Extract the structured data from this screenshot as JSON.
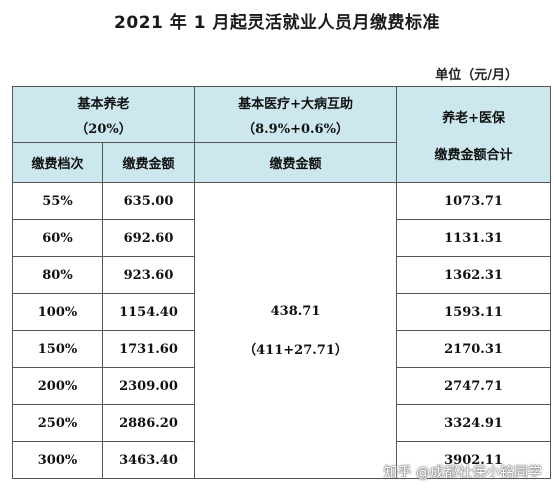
{
  "title": "2021 年 1 月起灵活就业人员月缴费标准",
  "unit": "单位（元/月）",
  "table": {
    "pension_header": "基本养老",
    "pension_rate": "（20%）",
    "medical_header": "基本医疗+大病互助",
    "medical_rate": "（8.9%+0.6%）",
    "total_header_1": "养老+医保",
    "total_header_2": "缴费金额合计",
    "col_level": "缴费档次",
    "col_amount": "缴费金额",
    "col_medical_amount": "缴费金额",
    "medical_value": "438.71",
    "medical_value_detail": "（411+27.71）",
    "rows": [
      {
        "level": "55%",
        "amount": "635.00",
        "total": "1073.71"
      },
      {
        "level": "60%",
        "amount": "692.60",
        "total": "1131.31"
      },
      {
        "level": "80%",
        "amount": "923.60",
        "total": "1362.31"
      },
      {
        "level": "100%",
        "amount": "1154.40",
        "total": "1593.11"
      },
      {
        "level": "150%",
        "amount": "1731.60",
        "total": "2170.31"
      },
      {
        "level": "200%",
        "amount": "2309.00",
        "total": "2747.71"
      },
      {
        "level": "250%",
        "amount": "2886.20",
        "total": "3324.91"
      },
      {
        "level": "300%",
        "amount": "3463.40",
        "total": "3902.11"
      }
    ]
  },
  "watermark": "知乎 @成都社保小铭同学",
  "colors": {
    "header_bg": "#cce8ee",
    "border": "#555555"
  }
}
